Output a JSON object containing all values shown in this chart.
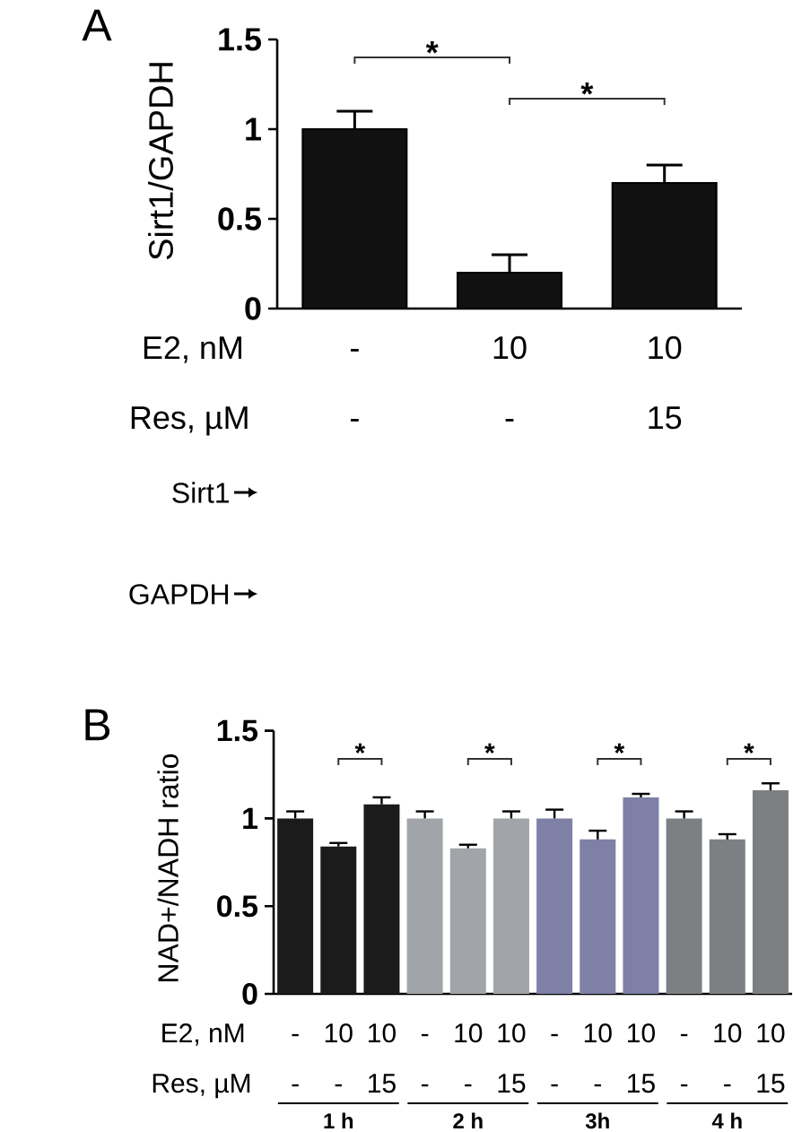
{
  "chart_data": [
    {
      "type": "bar",
      "title": "A",
      "ylabel": "Sirt1/GAPDH",
      "xlabel": "E2, nM",
      "categories": [
        "-",
        "10",
        "10"
      ],
      "values": [
        1,
        0.2,
        0.7
      ],
      "errors": [
        [
          1,
          1.1
        ],
        [
          0.2,
          0.3
        ],
        [
          0.7,
          0.8
        ]
      ],
      "color": "#111111",
      "ylim": [
        0,
        1.5
      ],
      "yticks": [
        0,
        0.5,
        1,
        1.5
      ],
      "annotations": [
        "*",
        "*",
        "Res, µM",
        "-",
        "-",
        "15",
        "Sirt1",
        "GAPDH"
      ]
    },
    {
      "type": "bar",
      "title": "B",
      "ylabel": "NAD+/NADH ratio",
      "xlabel": "E2, nM",
      "categories": [
        "-",
        "10",
        "10",
        "-",
        "10",
        "10",
        "-",
        "10",
        "10",
        "-",
        "10",
        "10"
      ],
      "values": [
        1,
        0.84,
        1.08,
        1,
        0.83,
        1,
        1,
        0.88,
        1.12,
        1,
        0.88,
        1.16
      ],
      "errors": [
        [
          1,
          1.04
        ],
        [
          0.84,
          0.86
        ],
        [
          1.08,
          1.12
        ],
        [
          1,
          1.04
        ],
        [
          0.83,
          0.85
        ],
        [
          1,
          1.04
        ],
        [
          1,
          1.05
        ],
        [
          0.88,
          0.93
        ],
        [
          1.12,
          1.14
        ],
        [
          1,
          1.04
        ],
        [
          0.88,
          0.91
        ],
        [
          1.16,
          1.2
        ]
      ],
      "colors": [
        "#1b1b1b",
        "#1b1b1b",
        "#1b1b1b",
        "#a1a4a9",
        "#a1a4a9",
        "#a1a4a9",
        "#7e80a6",
        "#7e80a6",
        "#7e80a6",
        "#7c8083",
        "#7c8083",
        "#7c8083"
      ],
      "ylim": [
        0,
        1.5
      ],
      "yticks": [
        0,
        0.5,
        1,
        1.5
      ],
      "annotations": [
        "*",
        "*",
        "*",
        "*",
        "Res, µM",
        "-",
        "-",
        "15",
        "-",
        "-",
        "15",
        "-",
        "-",
        "15",
        "-",
        "-",
        "15",
        "1 h",
        "2 h",
        "3h",
        "4 h"
      ]
    }
  ]
}
